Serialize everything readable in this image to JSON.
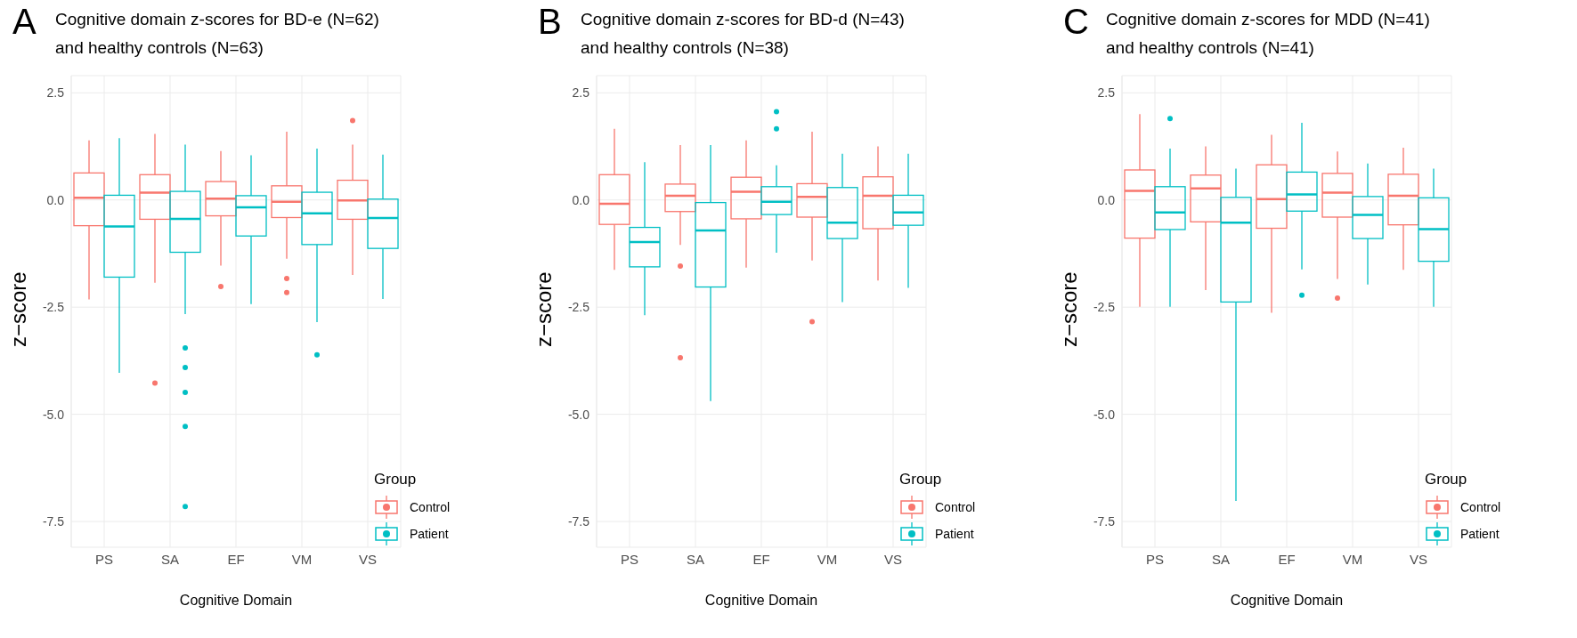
{
  "chart_data": [
    {
      "type": "box",
      "title": "Cognitive domain z-scores for BD-e (N=62)\nand healthy controls (N=63)",
      "annotations": [
        "A"
      ],
      "xlabel": "Cognitive Domain",
      "ylabel": "z−score",
      "legend_title": "Group",
      "legend": "bottom right",
      "grid": true,
      "categories": [
        "PS",
        "SA",
        "EF",
        "VM",
        "VS"
      ],
      "ylim": [
        -8.1,
        2.9
      ],
      "yticks": [
        {
          "value": -7.5,
          "label": "-7.5"
        },
        {
          "value": -5,
          "label": "-5.0"
        },
        {
          "value": -2.5,
          "label": "-2.5"
        },
        {
          "value": 0,
          "label": "0.0"
        },
        {
          "value": 2.5,
          "label": "2.5"
        }
      ],
      "series": [
        {
          "name": "Control",
          "color": "#f8766d",
          "boxes": [
            {
              "low": -2.32,
              "q1": -0.6,
              "median": 0.05,
              "q3": 0.63,
              "high": 1.39
            },
            {
              "low": -1.93,
              "q1": -0.45,
              "median": 0.17,
              "q3": 0.59,
              "high": 1.54,
              "outliers": [
                -4.27
              ]
            },
            {
              "low": -1.53,
              "q1": -0.37,
              "median": 0.03,
              "q3": 0.43,
              "high": 1.14,
              "outliers": [
                -2.02
              ]
            },
            {
              "low": -1.37,
              "q1": -0.41,
              "median": -0.04,
              "q3": 0.33,
              "high": 1.59,
              "outliers": [
                -1.83,
                -2.16
              ]
            },
            {
              "low": -1.75,
              "q1": -0.45,
              "median": -0.01,
              "q3": 0.46,
              "high": 1.29,
              "outliers": [
                1.85
              ]
            }
          ]
        },
        {
          "name": "Patient",
          "color": "#00bfc4",
          "boxes": [
            {
              "low": -4.03,
              "q1": -1.8,
              "median": -0.62,
              "q3": 0.11,
              "high": 1.44
            },
            {
              "low": -2.66,
              "q1": -1.22,
              "median": -0.44,
              "q3": 0.2,
              "high": 1.29,
              "outliers": [
                -3.45,
                -3.91,
                -4.49,
                -5.28,
                -7.15
              ]
            },
            {
              "low": -2.43,
              "q1": -0.84,
              "median": -0.17,
              "q3": 0.1,
              "high": 1.04
            },
            {
              "low": -2.85,
              "q1": -1.04,
              "median": -0.31,
              "q3": 0.18,
              "high": 1.2,
              "outliers": [
                -3.61
              ]
            },
            {
              "low": -2.31,
              "q1": -1.13,
              "median": -0.42,
              "q3": 0.02,
              "high": 1.06
            }
          ]
        }
      ]
    },
    {
      "type": "box",
      "title": "Cognitive domain z-scores for BD-d (N=43)\nand healthy controls (N=38)",
      "annotations": [
        "B"
      ],
      "xlabel": "Cognitive Domain",
      "ylabel": "z−score",
      "legend_title": "Group",
      "legend": "bottom right",
      "grid": true,
      "categories": [
        "PS",
        "SA",
        "EF",
        "VM",
        "VS"
      ],
      "ylim": [
        -8.1,
        2.9
      ],
      "yticks": [
        {
          "value": -7.5,
          "label": "-7.5"
        },
        {
          "value": -5,
          "label": "-5.0"
        },
        {
          "value": -2.5,
          "label": "-2.5"
        },
        {
          "value": 0,
          "label": "0.0"
        },
        {
          "value": 2.5,
          "label": "2.5"
        }
      ],
      "series": [
        {
          "name": "Control",
          "color": "#f8766d",
          "boxes": [
            {
              "low": -1.63,
              "q1": -0.57,
              "median": -0.09,
              "q3": 0.59,
              "high": 1.66
            },
            {
              "low": -1.05,
              "q1": -0.27,
              "median": 0.1,
              "q3": 0.37,
              "high": 1.28,
              "outliers": [
                -1.54,
                -3.68
              ]
            },
            {
              "low": -1.58,
              "q1": -0.44,
              "median": 0.19,
              "q3": 0.53,
              "high": 1.39
            },
            {
              "low": -1.41,
              "q1": -0.4,
              "median": 0.07,
              "q3": 0.38,
              "high": 1.59,
              "outliers": [
                -2.84
              ]
            },
            {
              "low": -1.88,
              "q1": -0.67,
              "median": 0.1,
              "q3": 0.54,
              "high": 1.25
            }
          ]
        },
        {
          "name": "Patient",
          "color": "#00bfc4",
          "boxes": [
            {
              "low": -2.69,
              "q1": -1.56,
              "median": -0.98,
              "q3": -0.64,
              "high": 0.88
            },
            {
              "low": -4.69,
              "q1": -2.03,
              "median": -0.71,
              "q3": -0.06,
              "high": 1.28
            },
            {
              "low": -1.23,
              "q1": -0.34,
              "median": -0.04,
              "q3": 0.31,
              "high": 0.81,
              "outliers": [
                2.06,
                1.66
              ]
            },
            {
              "low": -2.38,
              "q1": -0.9,
              "median": -0.53,
              "q3": 0.29,
              "high": 1.08
            },
            {
              "low": -2.05,
              "q1": -0.59,
              "median": -0.29,
              "q3": 0.11,
              "high": 1.08
            }
          ]
        }
      ]
    },
    {
      "type": "box",
      "title": "Cognitive domain z-scores for MDD (N=41)\nand healthy controls (N=41)",
      "annotations": [
        "C"
      ],
      "xlabel": "Cognitive Domain",
      "ylabel": "z−score",
      "legend_title": "Group",
      "legend": "bottom right",
      "grid": true,
      "categories": [
        "PS",
        "SA",
        "EF",
        "VM",
        "VS"
      ],
      "ylim": [
        -8.1,
        2.9
      ],
      "yticks": [
        {
          "value": -7.5,
          "label": "-7.5"
        },
        {
          "value": -5,
          "label": "-5.0"
        },
        {
          "value": -2.5,
          "label": "-2.5"
        },
        {
          "value": 0,
          "label": "0.0"
        },
        {
          "value": 2.5,
          "label": "2.5"
        }
      ],
      "series": [
        {
          "name": "Control",
          "color": "#f8766d",
          "boxes": [
            {
              "low": -2.49,
              "q1": -0.89,
              "median": 0.21,
              "q3": 0.7,
              "high": 2.0
            },
            {
              "low": -2.1,
              "q1": -0.51,
              "median": 0.27,
              "q3": 0.58,
              "high": 1.25
            },
            {
              "low": -2.63,
              "q1": -0.66,
              "median": 0.02,
              "q3": 0.82,
              "high": 1.52
            },
            {
              "low": -1.84,
              "q1": -0.4,
              "median": 0.17,
              "q3": 0.62,
              "high": 1.13,
              "outliers": [
                -2.29
              ]
            },
            {
              "low": -1.63,
              "q1": -0.58,
              "median": 0.1,
              "q3": 0.6,
              "high": 1.22
            }
          ]
        },
        {
          "name": "Patient",
          "color": "#00bfc4",
          "boxes": [
            {
              "low": -2.49,
              "q1": -0.69,
              "median": -0.29,
              "q3": 0.31,
              "high": 1.2,
              "outliers": [
                1.9
              ]
            },
            {
              "low": -7.02,
              "q1": -2.38,
              "median": -0.53,
              "q3": 0.06,
              "high": 0.73
            },
            {
              "low": -1.62,
              "q1": -0.26,
              "median": 0.13,
              "q3": 0.65,
              "high": 1.8,
              "outliers": [
                -2.22
              ]
            },
            {
              "low": -1.97,
              "q1": -0.9,
              "median": -0.35,
              "q3": 0.08,
              "high": 0.85
            },
            {
              "low": -2.49,
              "q1": -1.43,
              "median": -0.68,
              "q3": 0.05,
              "high": 0.73
            }
          ]
        }
      ]
    }
  ]
}
